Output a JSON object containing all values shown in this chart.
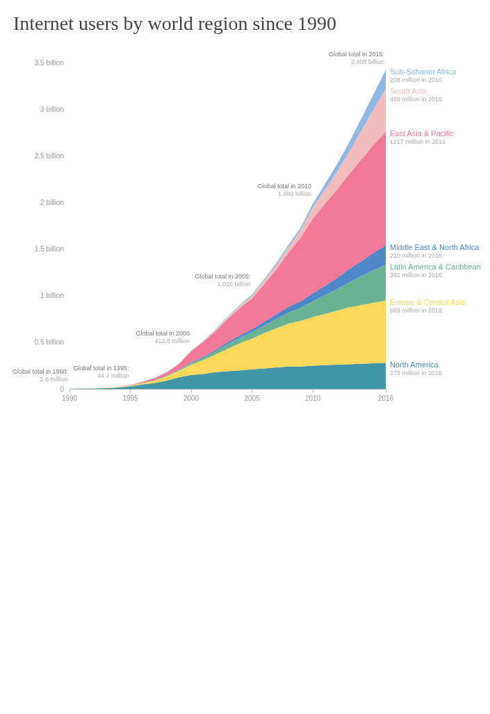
{
  "chart_data": {
    "type": "area",
    "title": "Internet users by world region since 1990",
    "stacked": true,
    "x": [
      1990,
      1991,
      1992,
      1993,
      1994,
      1995,
      1996,
      1997,
      1998,
      1999,
      2000,
      2001,
      2002,
      2003,
      2004,
      2005,
      2006,
      2007,
      2008,
      2009,
      2010,
      2011,
      2012,
      2013,
      2014,
      2015,
      2016
    ],
    "xlim": [
      1990,
      2016
    ],
    "xticks": [
      1990,
      1995,
      2000,
      2005,
      2010,
      2016
    ],
    "ylim": [
      0,
      3.5
    ],
    "yticks": [
      0,
      {
        "value": 0.5,
        "label": "0.5 billion"
      },
      {
        "value": 1,
        "label": "1 billion"
      },
      {
        "value": 1.5,
        "label": "1.5 billion"
      },
      {
        "value": 2,
        "label": "2 billion"
      },
      {
        "value": 2.5,
        "label": "2.5 billion"
      },
      {
        "value": 3,
        "label": "3 billion"
      },
      {
        "value": 3.5,
        "label": "3.5 billion"
      }
    ],
    "series": [
      {
        "name": "North America",
        "color": "#4396a8",
        "values": [
          0.002,
          0.003,
          0.005,
          0.008,
          0.015,
          0.027,
          0.048,
          0.064,
          0.09,
          0.125,
          0.15,
          0.16,
          0.18,
          0.19,
          0.2,
          0.21,
          0.22,
          0.23,
          0.24,
          0.24,
          0.25,
          0.255,
          0.26,
          0.265,
          0.27,
          0.275,
          0.279
        ]
      },
      {
        "name": "Europe & Central Asia",
        "color": "#fbd85c",
        "values": [
          0,
          0.001,
          0.002,
          0.003,
          0.005,
          0.009,
          0.016,
          0.026,
          0.045,
          0.07,
          0.11,
          0.15,
          0.19,
          0.24,
          0.29,
          0.33,
          0.38,
          0.42,
          0.46,
          0.49,
          0.52,
          0.55,
          0.58,
          0.61,
          0.63,
          0.65,
          0.669
        ]
      },
      {
        "name": "Latin America & Caribbean",
        "color": "#6ab293",
        "values": [
          0,
          0,
          0,
          0,
          0,
          0.001,
          0.002,
          0.004,
          0.007,
          0.01,
          0.018,
          0.025,
          0.035,
          0.05,
          0.06,
          0.07,
          0.08,
          0.1,
          0.12,
          0.14,
          0.17,
          0.2,
          0.23,
          0.27,
          0.31,
          0.35,
          0.382
        ]
      },
      {
        "name": "Middle East & North Africa",
        "color": "#4f87c9",
        "values": [
          0,
          0,
          0,
          0,
          0,
          0,
          0.001,
          0.001,
          0.002,
          0.004,
          0.006,
          0.01,
          0.015,
          0.02,
          0.025,
          0.03,
          0.04,
          0.05,
          0.06,
          0.07,
          0.085,
          0.1,
          0.12,
          0.14,
          0.16,
          0.185,
          0.21
        ]
      },
      {
        "name": "East Asia & Pacific",
        "color": "#f17896",
        "values": [
          0,
          0,
          0,
          0.001,
          0.002,
          0.004,
          0.01,
          0.02,
          0.035,
          0.06,
          0.12,
          0.16,
          0.2,
          0.25,
          0.29,
          0.33,
          0.4,
          0.48,
          0.58,
          0.68,
          0.8,
          0.88,
          0.95,
          1.02,
          1.09,
          1.16,
          1.217
        ]
      },
      {
        "name": "South Asia",
        "color": "#f3bcbc",
        "values": [
          0,
          0,
          0,
          0,
          0,
          0,
          0,
          0.001,
          0.002,
          0.004,
          0.006,
          0.008,
          0.012,
          0.018,
          0.025,
          0.03,
          0.04,
          0.05,
          0.06,
          0.08,
          0.12,
          0.15,
          0.19,
          0.24,
          0.31,
          0.38,
          0.459
        ]
      },
      {
        "name": "Sub-Saharan Africa",
        "color": "#90b8e3",
        "values": [
          0,
          0,
          0,
          0,
          0,
          0,
          0,
          0.001,
          0.001,
          0.002,
          0.003,
          0.004,
          0.006,
          0.008,
          0.01,
          0.012,
          0.015,
          0.02,
          0.025,
          0.03,
          0.04,
          0.06,
          0.08,
          0.1,
          0.13,
          0.16,
          0.208
        ]
      }
    ],
    "annotations": [
      {
        "text": "279 million in 2016",
        "x": 2016,
        "y": 0.279
      },
      {
        "text": "669 million in 2016",
        "x": 2016,
        "y": 0.948
      },
      {
        "text": "382 million in 2016",
        "x": 2016,
        "y": 1.33
      },
      {
        "text": "210 million in 2016",
        "x": 2016,
        "y": 1.54
      },
      {
        "text": "1217 million in 2016",
        "x": 2016,
        "y": 2.757
      },
      {
        "text": "459 million in 2016",
        "x": 2016,
        "y": 3.216
      },
      {
        "text": "208 million in 2016",
        "x": 2016,
        "y": 3.424
      },
      {
        "text": "Global total in 1990:\n2.6 million",
        "x": 1990,
        "y": 0.0026
      },
      {
        "text": "Global total in 1995:\n44.4 million",
        "x": 1995,
        "y": 0.0444
      },
      {
        "text": "Global total in 2000\n412.8 million",
        "x": 2000,
        "y": 0.4128
      },
      {
        "text": "Global total in 2005:\n1.026 billion",
        "x": 2005,
        "y": 1.026
      },
      {
        "text": "Global total in 2010\n1.992 billion",
        "x": 2010,
        "y": 1.992
      },
      {
        "text": "Global total in 2016:\n3.408 billion",
        "x": 2016,
        "y": 3.408
      }
    ]
  }
}
